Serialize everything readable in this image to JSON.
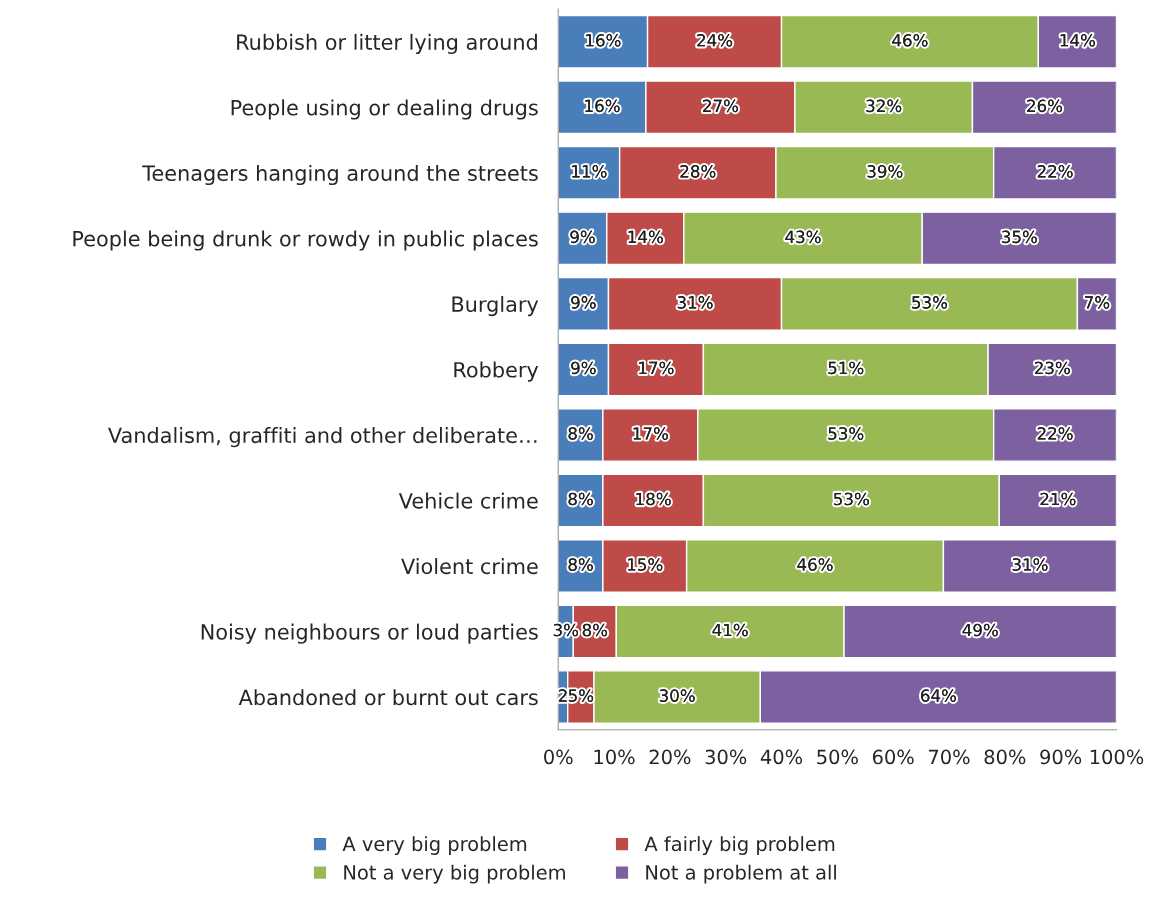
{
  "chart_data": {
    "type": "bar",
    "orientation": "horizontal",
    "stacked": true,
    "grid": false,
    "legend": "bottom",
    "categories": [
      "Rubbish or litter lying around",
      "People using or dealing drugs",
      "Teenagers hanging around the streets",
      "People being drunk or rowdy in public places",
      "Burglary",
      "Robbery",
      "Vandalism, graffiti and other deliberate…",
      "Vehicle crime",
      "Violent crime",
      "Noisy neighbours or loud parties",
      "Abandoned or burnt out cars"
    ],
    "series": [
      {
        "name": "A very big problem",
        "color": "#4a7ebb",
        "values": [
          16,
          15.7,
          11,
          8.7,
          9,
          9,
          8,
          8,
          8,
          2.7,
          1.7
        ],
        "value_labels": [
          "16%",
          "16%",
          "11%",
          "9%",
          "9%",
          "9%",
          "8%",
          "8%",
          "8%",
          "3%",
          "2"
        ]
      },
      {
        "name": "A fairly big problem",
        "color": "#be4b48",
        "values": [
          24,
          26.7,
          28,
          13.8,
          31,
          17,
          17,
          18,
          15,
          7.7,
          4.7
        ],
        "value_labels": [
          "24%",
          "27%",
          "28%",
          "14%",
          "31%",
          "17%",
          "17%",
          "18%",
          "15%",
          "8%",
          "5%"
        ]
      },
      {
        "name": "Not a very big problem",
        "color": "#98b954",
        "values": [
          46,
          31.8,
          39,
          42.7,
          53,
          51,
          53,
          53,
          46,
          40.8,
          29.8
        ],
        "value_labels": [
          "46%",
          "32%",
          "39%",
          "43%",
          "53%",
          "51%",
          "53%",
          "53%",
          "46%",
          "41%",
          "30%"
        ]
      },
      {
        "name": "Not a problem at all",
        "color": "#7d60a0",
        "values": [
          14,
          25.8,
          22,
          34.8,
          7,
          23,
          22,
          21,
          31,
          48.8,
          63.8
        ],
        "value_labels": [
          "14%",
          "26%",
          "22%",
          "35%",
          "7%",
          "23%",
          "22%",
          "21%",
          "31%",
          "49%",
          "64%"
        ]
      }
    ],
    "xlim": [
      0,
      100
    ],
    "xticks": [
      {
        "value": 0,
        "label": "0%"
      },
      {
        "value": 10,
        "label": "10%"
      },
      {
        "value": 20,
        "label": "20%"
      },
      {
        "value": 30,
        "label": "30%"
      },
      {
        "value": 40,
        "label": "40%"
      },
      {
        "value": 50,
        "label": "50%"
      },
      {
        "value": 60,
        "label": "60%"
      },
      {
        "value": 70,
        "label": "70%"
      },
      {
        "value": 80,
        "label": "80%"
      },
      {
        "value": 90,
        "label": "90%"
      },
      {
        "value": 100,
        "label": "100%"
      }
    ]
  }
}
